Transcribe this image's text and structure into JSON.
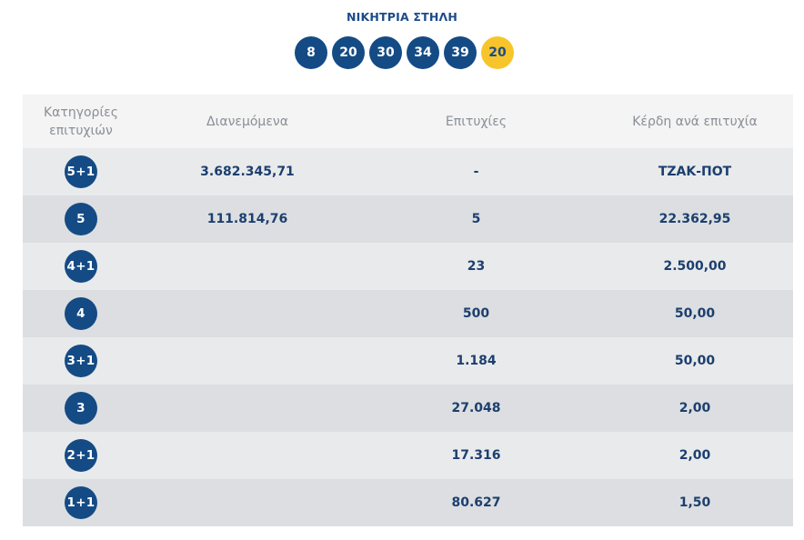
{
  "header": {
    "title": "ΝΙΚΗΤΡΙΑ ΣΤΗΛΗ",
    "numbers": [
      "8",
      "20",
      "30",
      "34",
      "39"
    ],
    "joker": "20"
  },
  "table": {
    "columns": {
      "category_line1": "Κατηγορίες",
      "category_line2": "επιτυχιών",
      "distributed": "Διανεμόμενα",
      "winners": "Επιτυχίες",
      "prize": "Κέρδη ανά επιτυχία"
    },
    "rows": [
      {
        "category": "5+1",
        "distributed": "3.682.345,71",
        "winners": "-",
        "prize": "ΤΖΑΚ-ΠΟΤ"
      },
      {
        "category": "5",
        "distributed": "111.814,76",
        "winners": "5",
        "prize": "22.362,95"
      },
      {
        "category": "4+1",
        "distributed": "",
        "winners": "23",
        "prize": "2.500,00"
      },
      {
        "category": "4",
        "distributed": "",
        "winners": "500",
        "prize": "50,00"
      },
      {
        "category": "3+1",
        "distributed": "",
        "winners": "1.184",
        "prize": "50,00"
      },
      {
        "category": "3",
        "distributed": "",
        "winners": "27.048",
        "prize": "2,00"
      },
      {
        "category": "2+1",
        "distributed": "",
        "winners": "17.316",
        "prize": "2,00"
      },
      {
        "category": "1+1",
        "distributed": "",
        "winners": "80.627",
        "prize": "1,50"
      }
    ]
  },
  "colors": {
    "primary_blue": "#144b85",
    "joker_yellow": "#f7c52b",
    "header_bg": "#f4f4f4",
    "row_light": "#e9eaec",
    "row_dark": "#dcdee1"
  }
}
